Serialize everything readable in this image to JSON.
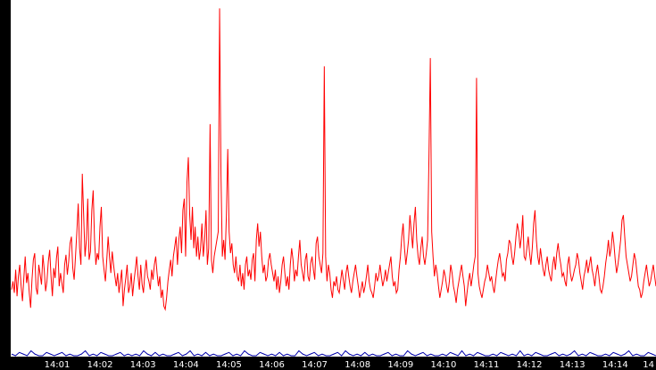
{
  "chart_data": {
    "type": "line",
    "title": "",
    "xlabel": "",
    "ylabel": "",
    "ylim": [
      0,
      214
    ],
    "y_ticks": [
      "0",
      "21",
      "42",
      "64",
      "85",
      "107",
      "128",
      "149",
      "171",
      "192",
      "214"
    ],
    "x_ticks": [
      "14:01",
      "14:02",
      "14:03",
      "14:04",
      "14:05",
      "14:06",
      "14:07",
      "14:08",
      "14:09",
      "14:10",
      "14:11",
      "14:12",
      "14:13",
      "14:14",
      "14"
    ],
    "grid": false,
    "legend": "none",
    "colors": {
      "background": "#ffffff",
      "axis_bar": "#000000",
      "axis_text_bottom": "#ffffff",
      "axis_text_left": "#000000",
      "series_1": "#ff0000",
      "series_2": "#0000aa"
    },
    "series": [
      {
        "color": "#ff0000",
        "values": [
          40,
          45,
          38,
          52,
          36,
          48,
          55,
          42,
          33,
          47,
          60,
          44,
          50,
          38,
          29,
          46,
          58,
          62,
          41,
          37,
          55,
          49,
          43,
          61,
          52,
          39,
          45,
          57,
          64,
          48,
          36,
          53,
          47,
          59,
          66,
          42,
          50,
          44,
          38,
          55,
          61,
          49,
          57,
          68,
          72,
          53,
          46,
          60,
          75,
          92,
          65,
          55,
          110,
          85,
          60,
          70,
          95,
          58,
          63,
          88,
          100,
          70,
          55,
          62,
          58,
          78,
          90,
          60,
          52,
          45,
          58,
          72,
          60,
          50,
          63,
          55,
          48,
          42,
          50,
          38,
          45,
          52,
          30,
          40,
          47,
          55,
          38,
          42,
          50,
          36,
          45,
          52,
          60,
          48,
          40,
          55,
          43,
          38,
          50,
          58,
          48,
          45,
          40,
          52,
          46,
          55,
          60,
          50,
          42,
          48,
          35,
          40,
          30,
          28,
          35,
          45,
          52,
          58,
          48,
          60,
          66,
          72,
          55,
          70,
          78,
          62,
          88,
          95,
          60,
          105,
          120,
          85,
          70,
          90,
          65,
          78,
          60,
          72,
          58,
          65,
          80,
          60,
          70,
          88,
          55,
          65,
          140,
          58,
          50,
          60,
          65,
          70,
          75,
          210,
          110,
          60,
          70,
          58,
          85,
          125,
          75,
          62,
          68,
          55,
          50,
          60,
          48,
          45,
          55,
          42,
          50,
          40,
          55,
          60,
          48,
          52,
          46,
          58,
          62,
          45,
          70,
          80,
          66,
          75,
          60,
          50,
          55,
          45,
          48,
          58,
          62,
          55,
          50,
          45,
          52,
          40,
          48,
          38,
          45,
          55,
          60,
          50,
          42,
          48,
          40,
          55,
          65,
          58,
          45,
          52,
          48,
          60,
          70,
          55,
          50,
          45,
          58,
          62,
          48,
          45,
          56,
          60,
          52,
          46,
          68,
          72,
          60,
          55,
          50,
          62,
          175,
          60,
          45,
          55,
          50,
          40,
          35,
          45,
          42,
          48,
          40,
          38,
          45,
          52,
          46,
          40,
          50,
          55,
          48,
          42,
          38,
          45,
          50,
          55,
          48,
          42,
          35,
          40,
          45,
          38,
          42,
          48,
          55,
          45,
          40,
          38,
          35,
          42,
          50,
          45,
          48,
          55,
          48,
          42,
          46,
          52,
          45,
          50,
          55,
          60,
          48,
          42,
          45,
          38,
          40,
          52,
          60,
          72,
          80,
          65,
          55,
          62,
          70,
          85,
          75,
          65,
          80,
          90,
          70,
          60,
          55,
          65,
          72,
          60,
          55,
          62,
          70,
          120,
          180,
          75,
          60,
          48,
          55,
          50,
          42,
          35,
          40,
          45,
          52,
          48,
          42,
          38,
          45,
          55,
          50,
          42,
          38,
          32,
          40,
          45,
          50,
          55,
          48,
          42,
          30,
          38,
          45,
          50,
          42,
          48,
          55,
          60,
          168,
          50,
          42,
          38,
          35,
          40,
          45,
          48,
          55,
          50,
          45,
          48,
          42,
          38,
          45,
          52,
          58,
          62,
          55,
          48,
          50,
          45,
          58,
          62,
          70,
          68,
          60,
          55,
          62,
          72,
          80,
          75,
          65,
          72,
          85,
          60,
          58,
          65,
          72,
          62,
          55,
          65,
          80,
          88,
          70,
          60,
          55,
          65,
          58,
          52,
          48,
          55,
          60,
          52,
          48,
          45,
          55,
          60,
          52,
          62,
          68,
          60,
          55,
          48,
          50,
          45,
          42,
          55,
          60,
          50,
          45,
          48,
          52,
          55,
          62,
          58,
          50,
          45,
          40,
          48,
          52,
          58,
          50,
          55,
          60,
          52,
          48,
          42,
          50,
          55,
          48,
          40,
          38,
          42,
          48,
          56,
          62,
          70,
          60,
          65,
          75,
          68,
          58,
          50,
          55,
          62,
          70,
          82,
          85,
          72,
          60,
          55,
          50,
          45,
          48,
          55,
          62,
          58,
          50,
          42,
          40,
          35,
          38,
          45,
          50,
          55,
          48,
          42,
          45,
          50,
          55,
          48,
          42
        ]
      },
      {
        "color": "#0000aa",
        "values": [
          1,
          0,
          2,
          1,
          0,
          3,
          1,
          0,
          0,
          2,
          1,
          0,
          1,
          2,
          0,
          1,
          0,
          0,
          1,
          3,
          0,
          1,
          0,
          2,
          1,
          0,
          0,
          1,
          2,
          0,
          1,
          0,
          1,
          0,
          3,
          1,
          0,
          2,
          0,
          1,
          0,
          0,
          1,
          2,
          0,
          1,
          3,
          0,
          1,
          0,
          2,
          0,
          1,
          0,
          0,
          1,
          2,
          0,
          1,
          0,
          3,
          1,
          0,
          0,
          2,
          1,
          0,
          1,
          0,
          2,
          0,
          1,
          0,
          0,
          3,
          1,
          0,
          1,
          2,
          0,
          1,
          0,
          0,
          1,
          2,
          0,
          3,
          1,
          0,
          1,
          0,
          2,
          0,
          1,
          0,
          0,
          1,
          2,
          0,
          1,
          0,
          0,
          3,
          1,
          0,
          1,
          2,
          0,
          1,
          0,
          0,
          1,
          0,
          2,
          1,
          0,
          3,
          0,
          1,
          0,
          2,
          1,
          0,
          0,
          1,
          0,
          2,
          1,
          0,
          1,
          0,
          3,
          0,
          1,
          0,
          2,
          1,
          0,
          0,
          1,
          2,
          0,
          1,
          0,
          1,
          3,
          0,
          1,
          0,
          2,
          1,
          0,
          0,
          1,
          0,
          2,
          1,
          0,
          1,
          3,
          0,
          1,
          0,
          0,
          2,
          1,
          0
        ]
      }
    ]
  }
}
